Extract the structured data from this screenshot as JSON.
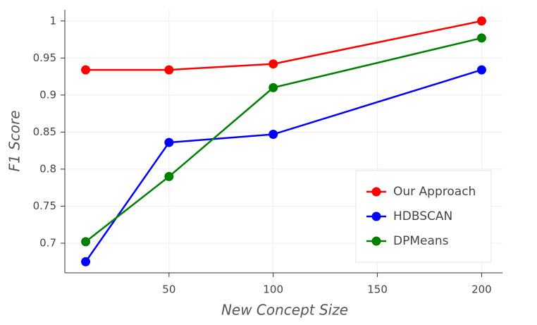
{
  "chart_data": {
    "type": "line",
    "x_label": "New Concept Size",
    "y_label": "F1 Score",
    "x": [
      10,
      50,
      100,
      200
    ],
    "series": [
      {
        "name": "Our Approach",
        "color": "#ff0000",
        "values": [
          0.934,
          0.934,
          0.942,
          1.0
        ]
      },
      {
        "name": "HDBSCAN",
        "color": "#0000ff",
        "values": [
          0.675,
          0.836,
          0.847,
          0.934
        ]
      },
      {
        "name": "DPMeans",
        "color": "#008000",
        "values": [
          0.702,
          0.79,
          0.91,
          0.977
        ]
      }
    ],
    "xlim": [
      0,
      210
    ],
    "ylim": [
      0.66,
      1.015
    ],
    "xticks": [
      50,
      100,
      150,
      200
    ],
    "yticks": [
      0.7,
      0.75,
      0.8,
      0.85,
      0.9,
      0.95,
      1
    ],
    "grid": true,
    "legend_position": "lower right"
  }
}
